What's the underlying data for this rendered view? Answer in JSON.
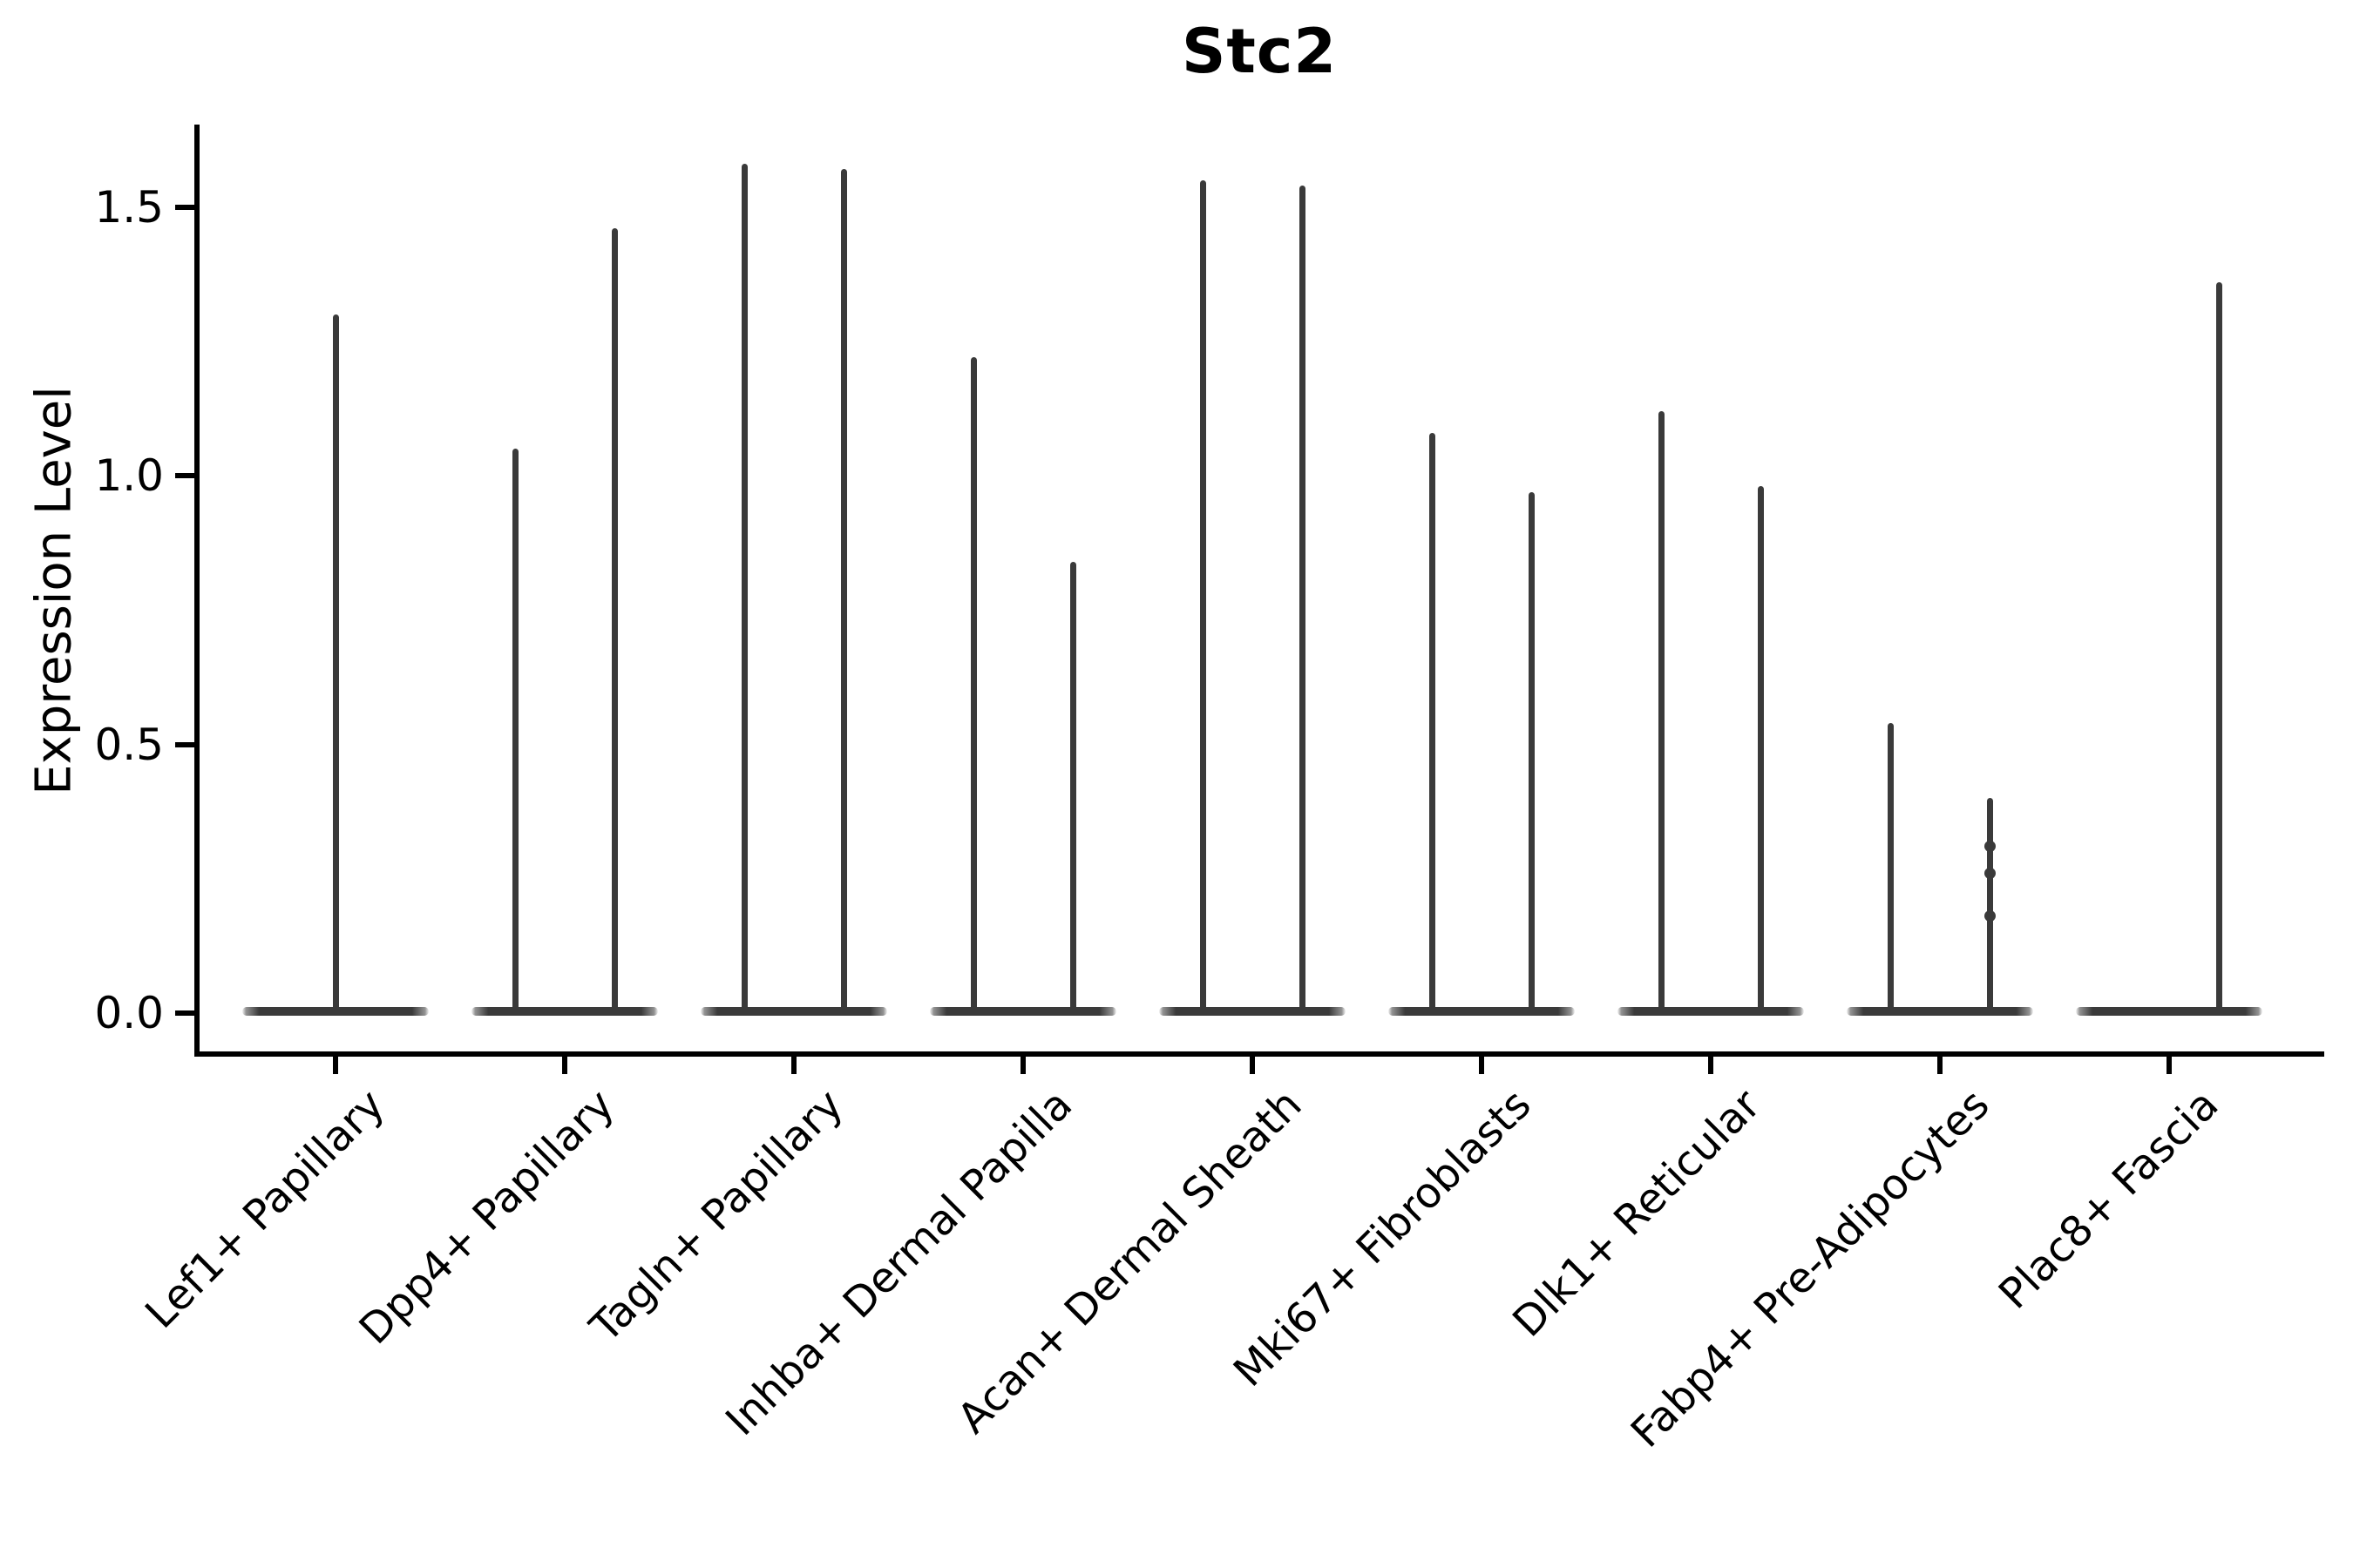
{
  "page": {
    "background": "#ffffff",
    "plot_border": "left-and-bottom-spines-only"
  },
  "chart_data": {
    "type": "violin",
    "title": "Stc2",
    "ylabel": "Expression Level",
    "xlabel": "",
    "ylim": [
      0,
      1.65
    ],
    "yticks": [
      {
        "value": 0.0,
        "label": "0.0"
      },
      {
        "value": 0.5,
        "label": "0.5"
      },
      {
        "value": 1.0,
        "label": "1.0"
      },
      {
        "value": 1.5,
        "label": "1.5"
      }
    ],
    "grid": false,
    "legend": "none",
    "violin_color": "#3a3a3a",
    "axis_color": "#000000",
    "description": "Single-cell expression violin plot. Each category shows violins whose density mass is concentrated at expression 0 (flat wide base) with a thin central spike rising to the maximum expression value. Most categories contain two side-by-side violins; Lef1+ Papillary shows one centered violin and Plac8+ Fascia's left violin has no expression (flat only).",
    "categories": [
      {
        "label": "Lef1+ Papillary",
        "violins": [
          {
            "position": "center",
            "max": 1.3
          }
        ]
      },
      {
        "label": "Dpp4+ Papillary",
        "violins": [
          {
            "position": "left",
            "max": 1.05
          },
          {
            "position": "right",
            "max": 1.46
          }
        ]
      },
      {
        "label": "Tagln+ Papillary",
        "violins": [
          {
            "position": "left",
            "max": 1.58
          },
          {
            "position": "right",
            "max": 1.57
          }
        ]
      },
      {
        "label": "Inhba+ Dermal Papilla",
        "violins": [
          {
            "position": "left",
            "max": 1.22
          },
          {
            "position": "right",
            "max": 0.84
          }
        ]
      },
      {
        "label": "Acan+ Dermal Sheath",
        "violins": [
          {
            "position": "left",
            "max": 1.55
          },
          {
            "position": "right",
            "max": 1.54
          }
        ]
      },
      {
        "label": "Mki67+ Fibroblasts",
        "violins": [
          {
            "position": "left",
            "max": 1.08
          },
          {
            "position": "right",
            "max": 0.97
          }
        ]
      },
      {
        "label": "Dlk1+ Reticular",
        "violins": [
          {
            "position": "left",
            "max": 1.12
          },
          {
            "position": "right",
            "max": 0.98
          }
        ]
      },
      {
        "label": "Fabp4+ Pre-Adipocytes",
        "violins": [
          {
            "position": "left",
            "max": 0.54
          },
          {
            "position": "right",
            "max": 0.4,
            "points": [
              0.31,
              0.26,
              0.18
            ]
          }
        ]
      },
      {
        "label": "Plac8+ Fascia",
        "violins": [
          {
            "position": "left",
            "max": 0.0
          },
          {
            "position": "right",
            "max": 1.36
          }
        ]
      }
    ]
  }
}
